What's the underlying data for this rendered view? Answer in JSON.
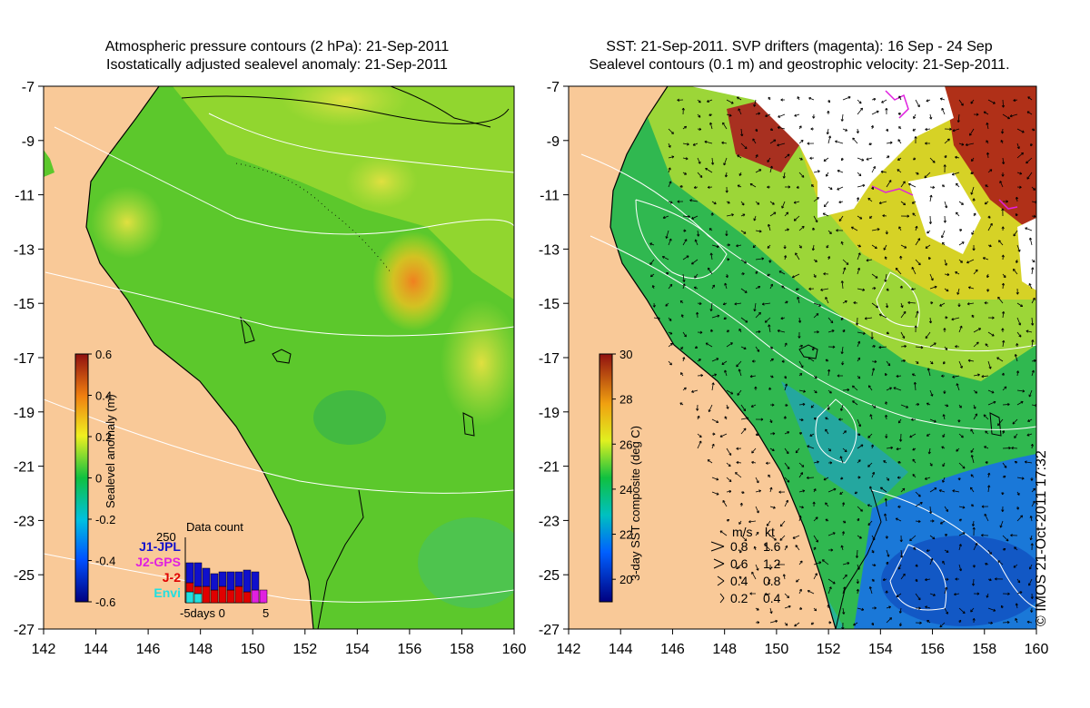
{
  "left_panel": {
    "title_line1": "Atmospheric pressure contours (2 hPa): 21-Sep-2011",
    "title_line2": "Isostatically adjusted sealevel anomaly: 21-Sep-2011",
    "y_ticks": [
      "-7",
      "-9",
      "-11",
      "-13",
      "-15",
      "-17",
      "-19",
      "-21",
      "-23",
      "-25",
      "-27"
    ],
    "x_ticks": [
      "142",
      "144",
      "146",
      "148",
      "150",
      "152",
      "154",
      "156",
      "158",
      "160"
    ],
    "colorbar": {
      "label": "Sealevel anomaly (m)",
      "ticks": [
        "0.6",
        "0.4",
        "0.2",
        "0",
        "-0.2",
        "-0.4",
        "-0.6"
      ],
      "range": [
        -0.6,
        0.6
      ]
    },
    "data_count": {
      "title": "Data count",
      "max_label": "250",
      "x_axis_label": "-5days 0",
      "x_end_label": "5",
      "legend": [
        {
          "label": "J1-JPL",
          "color": "#1010cc"
        },
        {
          "label": "J2-GPS",
          "color": "#e020e0"
        },
        {
          "label": "J-2",
          "color": "#e00000"
        },
        {
          "label": "Envi",
          "color": "#20e0e0"
        }
      ]
    }
  },
  "right_panel": {
    "title_line1": "SST: 21-Sep-2011. SVP drifters (magenta): 16 Sep - 24 Sep",
    "title_line2": "Sealevel contours (0.1 m) and geostrophic velocity: 21-Sep-2011.",
    "y_ticks": [
      "-7",
      "-9",
      "-11",
      "-13",
      "-15",
      "-17",
      "-19",
      "-21",
      "-23",
      "-25",
      "-27"
    ],
    "x_ticks": [
      "142",
      "144",
      "146",
      "148",
      "150",
      "152",
      "154",
      "156",
      "158",
      "160"
    ],
    "colorbar": {
      "label": "3-day SST composite (deg C)",
      "ticks": [
        "30",
        "28",
        "26",
        "24",
        "22",
        "20"
      ],
      "range": [
        19,
        30
      ]
    },
    "velocity_legend": {
      "header_ms": "m/s",
      "header_kt": "kt",
      "rows": [
        {
          "ms": "0.8",
          "kt": "1.6"
        },
        {
          "ms": "0.6",
          "kt": "1.2"
        },
        {
          "ms": "0.4",
          "kt": "0.8"
        },
        {
          "ms": "0.2",
          "kt": "0.4"
        }
      ]
    }
  },
  "credit": "© IMOS 21-Oct-2011 17:32",
  "colors": {
    "land": "#f9c998",
    "cloud": "#ffffff",
    "contour": "#ffffff",
    "coast": "#000000"
  }
}
